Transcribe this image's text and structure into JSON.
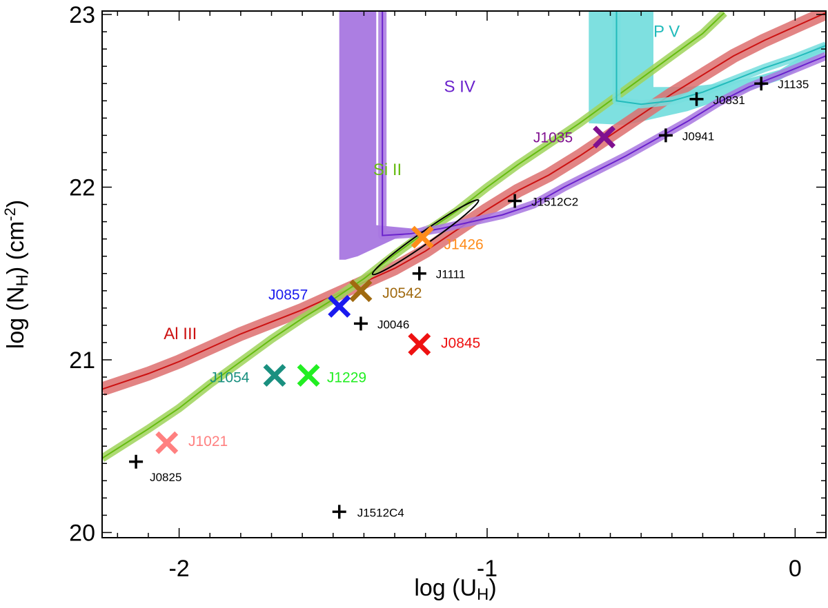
{
  "chart_data": {
    "type": "scatter",
    "xlabel": "log (U_H)",
    "xlabel_main": "log (U",
    "xlabel_sub": "H",
    "xlabel_close": ")",
    "ylabel_main": "log (N",
    "ylabel_sub": "H",
    "ylabel_mid": ") (cm",
    "ylabel_sup": "-2",
    "ylabel_close": ")",
    "xlim": [
      -2.25,
      0.1
    ],
    "ylim": [
      19.97,
      23.02
    ],
    "xticks": [
      -2,
      -1,
      0
    ],
    "xtick_labels": [
      "-2",
      "-1",
      "0"
    ],
    "yticks": [
      20,
      21,
      22,
      23
    ],
    "ytick_labels": [
      "20",
      "21",
      "22",
      "23"
    ],
    "ion_curves": [
      {
        "name": "Al III",
        "color": "#cc1111",
        "band_color": "#dd6e6e",
        "label_x": -2.05,
        "label_y": 21.12,
        "points": [
          [
            -2.25,
            20.83
          ],
          [
            -2.2,
            20.86
          ],
          [
            -2.1,
            20.92
          ],
          [
            -2.0,
            20.99
          ],
          [
            -1.9,
            21.07
          ],
          [
            -1.8,
            21.15
          ],
          [
            -1.7,
            21.22
          ],
          [
            -1.6,
            21.29
          ],
          [
            -1.5,
            21.37
          ],
          [
            -1.4,
            21.45
          ],
          [
            -1.3,
            21.53
          ],
          [
            -1.2,
            21.63
          ],
          [
            -1.1,
            21.75
          ],
          [
            -1.0,
            21.87
          ],
          [
            -0.9,
            21.98
          ],
          [
            -0.8,
            22.07
          ],
          [
            -0.7,
            22.18
          ],
          [
            -0.6,
            22.3
          ],
          [
            -0.5,
            22.42
          ],
          [
            -0.4,
            22.54
          ],
          [
            -0.3,
            22.65
          ],
          [
            -0.2,
            22.76
          ],
          [
            -0.1,
            22.85
          ],
          [
            0.0,
            22.93
          ],
          [
            0.1,
            23.01
          ]
        ]
      },
      {
        "name": "Si II",
        "color": "#66bb11",
        "band_color": "#9fd45a",
        "label_x": -1.37,
        "label_y": 22.07,
        "points": [
          [
            -2.25,
            20.43
          ],
          [
            -2.1,
            20.6
          ],
          [
            -2.0,
            20.72
          ],
          [
            -1.9,
            20.86
          ],
          [
            -1.8,
            20.99
          ],
          [
            -1.7,
            21.12
          ],
          [
            -1.6,
            21.24
          ],
          [
            -1.5,
            21.35
          ],
          [
            -1.4,
            21.47
          ],
          [
            -1.3,
            21.61
          ],
          [
            -1.2,
            21.74
          ],
          [
            -1.1,
            21.86
          ],
          [
            -1.0,
            22.0
          ],
          [
            -0.9,
            22.13
          ],
          [
            -0.8,
            22.25
          ],
          [
            -0.7,
            22.37
          ],
          [
            -0.6,
            22.5
          ],
          [
            -0.5,
            22.63
          ],
          [
            -0.4,
            22.76
          ],
          [
            -0.3,
            22.89
          ],
          [
            -0.23,
            23.01
          ]
        ]
      },
      {
        "name": "S IV",
        "color": "#6a22cc",
        "band_color": "#a877e0",
        "label_x": -1.14,
        "label_y": 22.55,
        "points": [
          [
            -1.34,
            23.02
          ],
          [
            -1.34,
            21.72
          ],
          [
            -1.25,
            21.73
          ],
          [
            -1.15,
            21.76
          ],
          [
            -1.05,
            21.8
          ],
          [
            -0.95,
            21.84
          ],
          [
            -0.85,
            21.9
          ],
          [
            -0.75,
            22.0
          ],
          [
            -0.65,
            22.09
          ],
          [
            -0.55,
            22.18
          ],
          [
            -0.45,
            22.28
          ],
          [
            -0.35,
            22.38
          ],
          [
            -0.25,
            22.49
          ],
          [
            -0.15,
            22.58
          ],
          [
            -0.05,
            22.65
          ],
          [
            0.1,
            22.76
          ]
        ]
      },
      {
        "name": "P V",
        "color": "#22bbbb",
        "band_color": "#77dede",
        "label_x": -0.46,
        "label_y": 22.87,
        "points": [
          [
            -0.58,
            23.02
          ],
          [
            -0.58,
            22.5
          ],
          [
            -0.5,
            22.48
          ],
          [
            -0.4,
            22.5
          ],
          [
            -0.3,
            22.55
          ],
          [
            -0.2,
            22.62
          ],
          [
            -0.1,
            22.69
          ],
          [
            0.0,
            22.75
          ],
          [
            0.1,
            22.82
          ]
        ]
      }
    ],
    "bands": [
      {
        "name": "S IV region",
        "color": "#a877e0",
        "polygon": [
          [
            -1.5,
            23.02
          ],
          [
            -1.36,
            23.02
          ],
          [
            -1.36,
            21.78
          ],
          [
            -1.24,
            21.76
          ],
          [
            -1.24,
            21.75
          ],
          [
            -1.16,
            21.8
          ],
          [
            -1.3,
            21.7
          ],
          [
            -1.42,
            21.6
          ],
          [
            -1.46,
            21.58
          ],
          [
            -1.48,
            21.58
          ],
          [
            -1.48,
            23.02
          ]
        ]
      },
      {
        "name": "P V region",
        "color": "#77dede",
        "polygon": [
          [
            -0.67,
            23.02
          ],
          [
            -0.46,
            23.02
          ],
          [
            -0.46,
            22.58
          ],
          [
            -0.35,
            22.58
          ],
          [
            -0.25,
            22.6
          ],
          [
            -0.15,
            22.63
          ],
          [
            -0.05,
            22.68
          ],
          [
            0.1,
            22.84
          ],
          [
            0.1,
            22.78
          ],
          [
            -0.05,
            22.62
          ],
          [
            -0.15,
            22.56
          ],
          [
            -0.25,
            22.5
          ],
          [
            -0.35,
            22.44
          ],
          [
            -0.45,
            22.4
          ],
          [
            -0.55,
            22.36
          ],
          [
            -0.67,
            22.37
          ]
        ]
      }
    ],
    "ellipse": {
      "cx": -1.2,
      "cy": 21.71,
      "rx_deg_len": 0.2,
      "ry": 0.035,
      "angle_deg": -35
    },
    "x_markers": [
      {
        "name": "J1426",
        "x": -1.21,
        "y": 21.71,
        "color": "#ff8c1a",
        "label_dx": 0.07,
        "label_dy": -0.07
      },
      {
        "name": "J0542",
        "x": -1.41,
        "y": 21.4,
        "color": "#a06a10",
        "label_dx": 0.07,
        "label_dy": -0.04
      },
      {
        "name": "J0857",
        "x": -1.48,
        "y": 21.31,
        "color": "#1a1aee",
        "label_dx": -0.23,
        "label_dy": 0.04
      },
      {
        "name": "J0845",
        "x": -1.22,
        "y": 21.09,
        "color": "#ee1111",
        "label_dx": 0.07,
        "label_dy": -0.02
      },
      {
        "name": "J1054",
        "x": -1.69,
        "y": 20.91,
        "color": "#1a9080",
        "label_dx": -0.21,
        "label_dy": -0.04
      },
      {
        "name": "J1229",
        "x": -1.58,
        "y": 20.91,
        "color": "#22ee22",
        "label_dx": 0.06,
        "label_dy": -0.04
      },
      {
        "name": "J1021",
        "x": -2.04,
        "y": 20.52,
        "color": "#ff8080",
        "label_dx": 0.07,
        "label_dy": -0.02
      },
      {
        "name": "J1035",
        "x": -0.62,
        "y": 22.29,
        "color": "#801090",
        "label_dx": -0.23,
        "label_dy": -0.03
      }
    ],
    "plus_markers": [
      {
        "name": "J1135",
        "x": -0.11,
        "y": 22.6
      },
      {
        "name": "J0831",
        "x": -0.32,
        "y": 22.51
      },
      {
        "name": "J0941",
        "x": -0.42,
        "y": 22.3
      },
      {
        "name": "J1512C2",
        "x": -0.91,
        "y": 21.92
      },
      {
        "name": "J1111",
        "x": -1.22,
        "y": 21.5
      },
      {
        "name": "J0046",
        "x": -1.41,
        "y": 21.21
      },
      {
        "name": "J0825",
        "x": -2.14,
        "y": 20.41
      },
      {
        "name": "J1512C4",
        "x": -1.48,
        "y": 20.12
      }
    ]
  }
}
